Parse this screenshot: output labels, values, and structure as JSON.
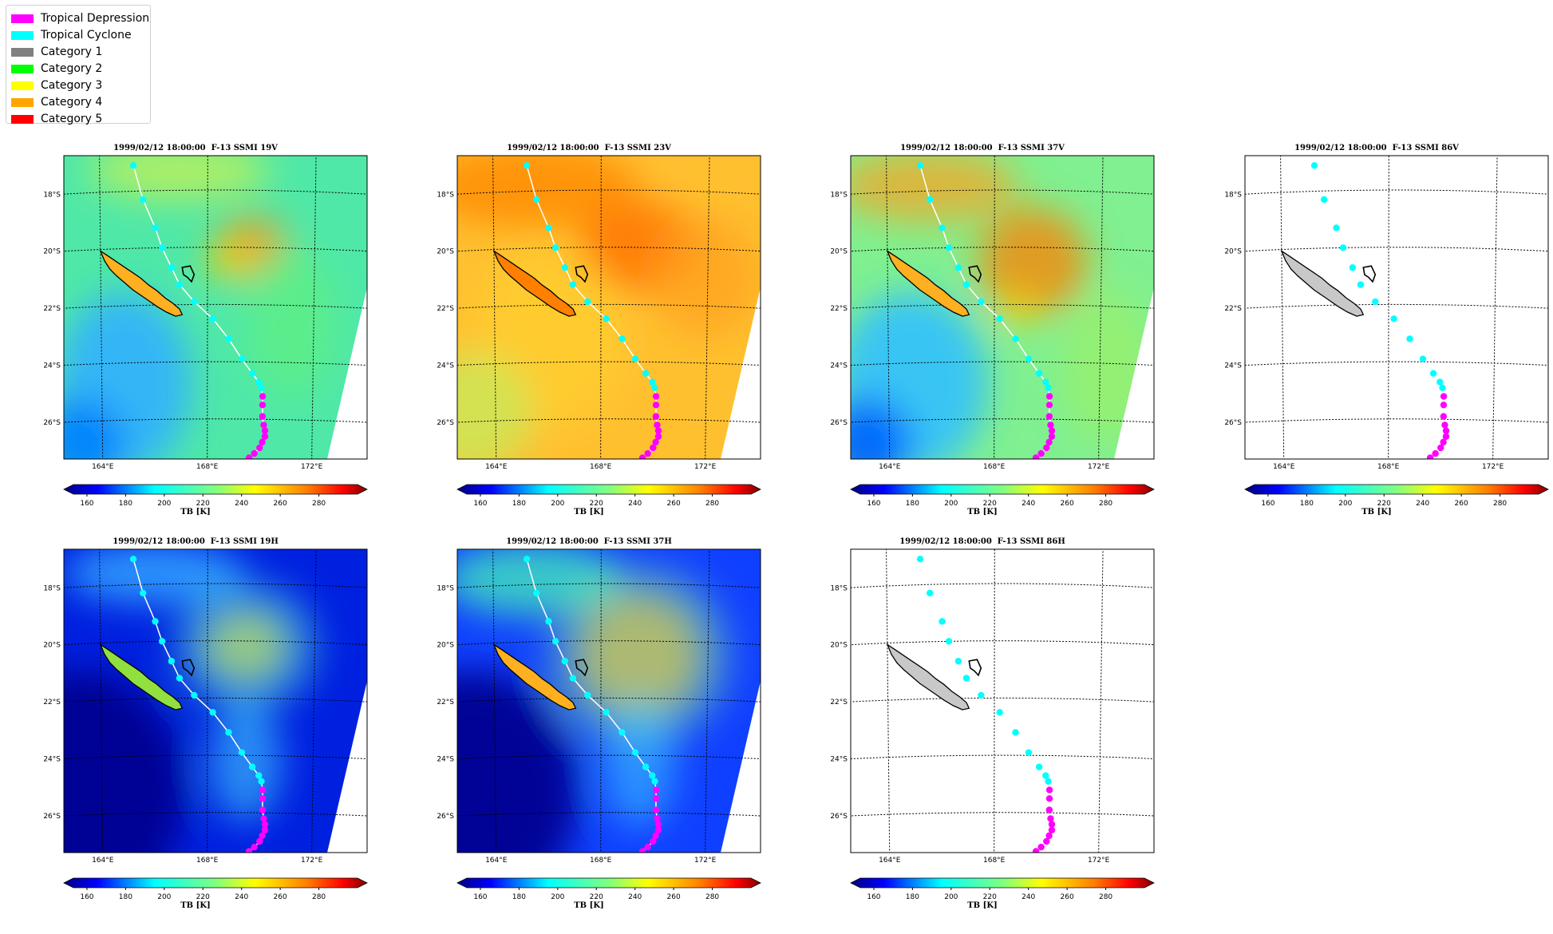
{
  "legend": {
    "items": [
      {
        "label": "Tropical Depression",
        "color": "#ff00ff"
      },
      {
        "label": "Tropical Cyclone",
        "color": "#00ffff"
      },
      {
        "label": "Category 1",
        "color": "#808080"
      },
      {
        "label": "Category 2",
        "color": "#00ff00"
      },
      {
        "label": "Category 3",
        "color": "#ffff00"
      },
      {
        "label": "Category 4",
        "color": "#ffa500"
      },
      {
        "label": "Category 5",
        "color": "#ff0000"
      }
    ]
  },
  "axes": {
    "lat_labels": [
      "18°S",
      "20°S",
      "22°S",
      "24°S",
      "26°S"
    ],
    "lon_labels": [
      "164°E",
      "168°E",
      "172°E"
    ]
  },
  "colorbar": {
    "ticks": [
      "160",
      "180",
      "200",
      "220",
      "240",
      "260",
      "280"
    ],
    "label": "TB [K]"
  },
  "panels": [
    {
      "title": "1999/02/12 18:00:00  F-13 SSMI 19V",
      "style": "v19",
      "track_line": true
    },
    {
      "title": "1999/02/12 18:00:00  F-13 SSMI 23V",
      "style": "v23",
      "track_line": true
    },
    {
      "title": "1999/02/12 18:00:00  F-13 SSMI 37V",
      "style": "v37",
      "track_line": true
    },
    {
      "title": "1999/02/12 18:00:00  F-13 SSMI 86V",
      "style": "blank",
      "track_line": false
    },
    {
      "title": "1999/02/12 18:00:00  F-13 SSMI 19H",
      "style": "h19",
      "track_line": true
    },
    {
      "title": "1999/02/12 18:00:00  F-13 SSMI 37H",
      "style": "h37",
      "track_line": true
    },
    {
      "title": "1999/02/12 18:00:00  F-13 SSMI 86H",
      "style": "blank",
      "track_line": false
    }
  ],
  "track": {
    "tropical_cyclone_color": "#00ffff",
    "tropical_depression_color": "#ff00ff",
    "points": [
      {
        "lon": 165.25,
        "lat": -17.1,
        "cat": "TC"
      },
      {
        "lon": 165.6,
        "lat": -18.3,
        "cat": "TC"
      },
      {
        "lon": 166.05,
        "lat": -19.3,
        "cat": "TC"
      },
      {
        "lon": 166.3,
        "lat": -20.0,
        "cat": "TC"
      },
      {
        "lon": 166.65,
        "lat": -20.7,
        "cat": "TC"
      },
      {
        "lon": 166.95,
        "lat": -21.3,
        "cat": "TC"
      },
      {
        "lon": 167.5,
        "lat": -21.9,
        "cat": "TC"
      },
      {
        "lon": 168.2,
        "lat": -22.5,
        "cat": "TC"
      },
      {
        "lon": 168.8,
        "lat": -23.2,
        "cat": "TC"
      },
      {
        "lon": 169.3,
        "lat": -23.9,
        "cat": "TC"
      },
      {
        "lon": 169.7,
        "lat": -24.4,
        "cat": "TC"
      },
      {
        "lon": 169.95,
        "lat": -24.7,
        "cat": "TC"
      },
      {
        "lon": 170.05,
        "lat": -24.9,
        "cat": "TC"
      },
      {
        "lon": 170.1,
        "lat": -25.2,
        "cat": "TD"
      },
      {
        "lon": 170.1,
        "lat": -25.5,
        "cat": "TD"
      },
      {
        "lon": 170.1,
        "lat": -25.9,
        "cat": "TD"
      },
      {
        "lon": 170.15,
        "lat": -26.2,
        "cat": "TD"
      },
      {
        "lon": 170.2,
        "lat": -26.4,
        "cat": "TD"
      },
      {
        "lon": 170.2,
        "lat": -26.6,
        "cat": "TD"
      },
      {
        "lon": 170.1,
        "lat": -26.8,
        "cat": "TD"
      },
      {
        "lon": 170.0,
        "lat": -27.0,
        "cat": "TD"
      },
      {
        "lon": 169.8,
        "lat": -27.2,
        "cat": "TD"
      },
      {
        "lon": 169.6,
        "lat": -27.35,
        "cat": "TD"
      }
    ]
  }
}
